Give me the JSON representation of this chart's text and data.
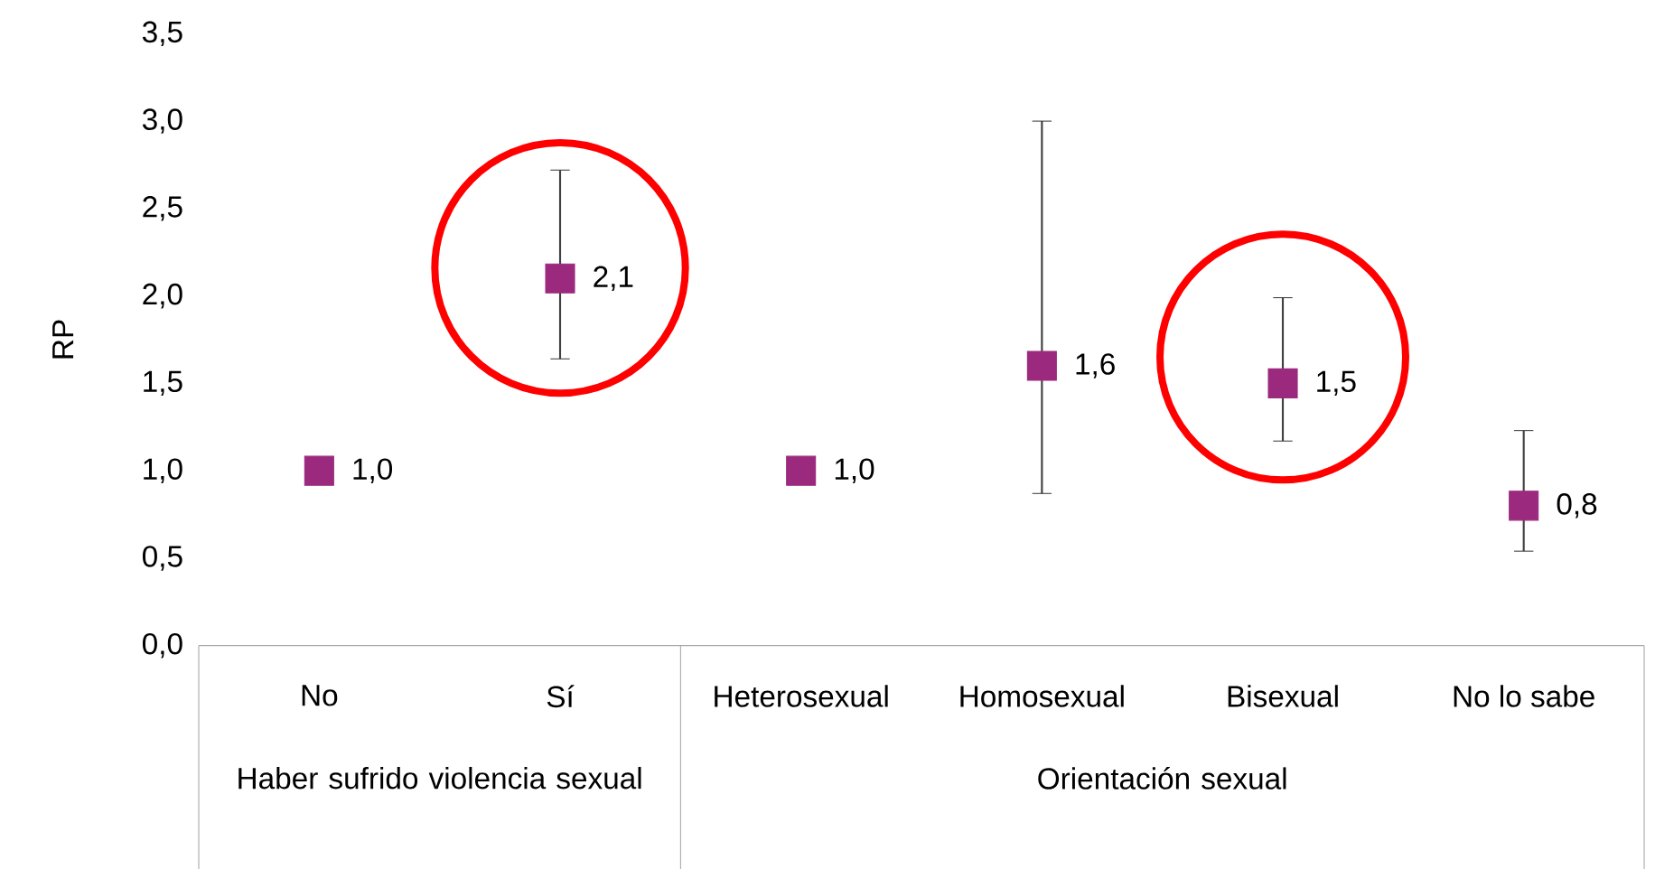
{
  "chart_data": {
    "type": "scatter",
    "ylabel": "RP",
    "marker": "square",
    "color": "#9b2a7e",
    "categories": [
      "No",
      "Sí",
      "Heterosexual",
      "Homosexual",
      "Bisexual",
      "No lo sabe"
    ],
    "values": [
      1.0,
      2.1,
      1.0,
      1.6,
      1.5,
      0.8
    ],
    "errors": [
      null,
      [
        1.64,
        2.72
      ],
      null,
      [
        0.87,
        3.0
      ],
      [
        1.17,
        1.99
      ],
      [
        0.54,
        1.23
      ]
    ],
    "value_labels": [
      "1,0",
      "2,1",
      "1,0",
      "1,6",
      "1,5",
      "0,8"
    ],
    "ylim": [
      0,
      3.5
    ],
    "yticks": [
      {
        "value": 0,
        "label": "0,0"
      },
      {
        "value": 0.5,
        "label": "0,5"
      },
      {
        "value": 1,
        "label": "1,0"
      },
      {
        "value": 1.5,
        "label": "1,5"
      },
      {
        "value": 2,
        "label": "2,0"
      },
      {
        "value": 2.5,
        "label": "2,5"
      },
      {
        "value": 3,
        "label": "3,0"
      },
      {
        "value": 3.5,
        "label": "3,5"
      }
    ],
    "annotations": [
      "Haber sufrido violencia sexual",
      "Orientación sexual"
    ]
  }
}
